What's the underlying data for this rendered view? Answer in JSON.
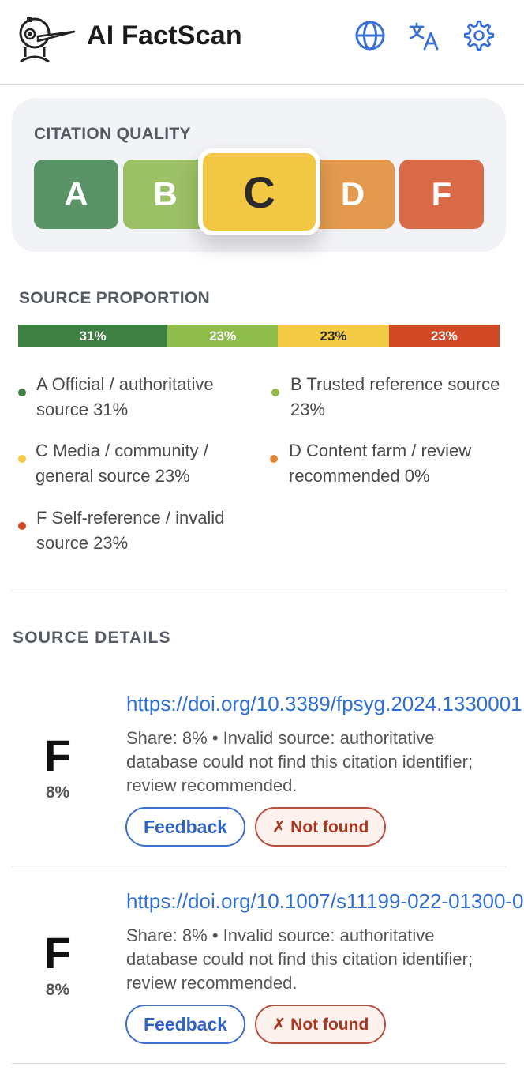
{
  "header": {
    "title": "AI FactScan",
    "icons": [
      "globe-icon",
      "translate-icon",
      "gear-icon"
    ]
  },
  "citation_quality": {
    "label": "CITATION QUALITY",
    "grades": [
      {
        "letter": "A",
        "color": "#5a9466"
      },
      {
        "letter": "B",
        "color": "#9cc066"
      },
      {
        "letter": "C",
        "color": "#f2c744",
        "selected": true
      },
      {
        "letter": "D",
        "color": "#e39a4f"
      },
      {
        "letter": "F",
        "color": "#d96a48"
      }
    ],
    "selected": "C"
  },
  "source_proportion": {
    "label": "SOURCE PROPORTION",
    "bar": [
      {
        "label": "31%",
        "value": 31,
        "color": "#3e8042"
      },
      {
        "label": "23%",
        "value": 23,
        "color": "#8fbd4c"
      },
      {
        "label": "23%",
        "value": 23,
        "color": "#f3cb44"
      },
      {
        "label": "23%",
        "value": 23,
        "color": "#d14a25"
      }
    ],
    "legend": [
      {
        "text": "A Official / authoritative source 31%",
        "color": "#3e8042"
      },
      {
        "text": "B Trusted reference source 23%",
        "color": "#8fbd4c"
      },
      {
        "text": "C Media / community / general source 23%",
        "color": "#f3cb44"
      },
      {
        "text": "D Content farm / review recommended 0%",
        "color": "#e0883a"
      },
      {
        "text": "F Self-reference / invalid source 23%",
        "color": "#d14a25"
      }
    ]
  },
  "source_details": {
    "label": "SOURCE DETAILS",
    "items": [
      {
        "grade": "F",
        "percent": "8%",
        "url": "https://doi.org/10.3389/fpsyg.2024.1330001",
        "description": "Share: 8%  •  Invalid source: authoritative database could not find this citation identifier; review recommended.",
        "feedback_label": "Feedback",
        "status_label": "✗ Not found"
      },
      {
        "grade": "F",
        "percent": "8%",
        "url": "https://doi.org/10.1007/s11199-022-01300-0",
        "description": "Share: 8%  •  Invalid source: authoritative database could not find this citation identifier; review recommended.",
        "feedback_label": "Feedback",
        "status_label": "✗ Not found"
      }
    ]
  }
}
